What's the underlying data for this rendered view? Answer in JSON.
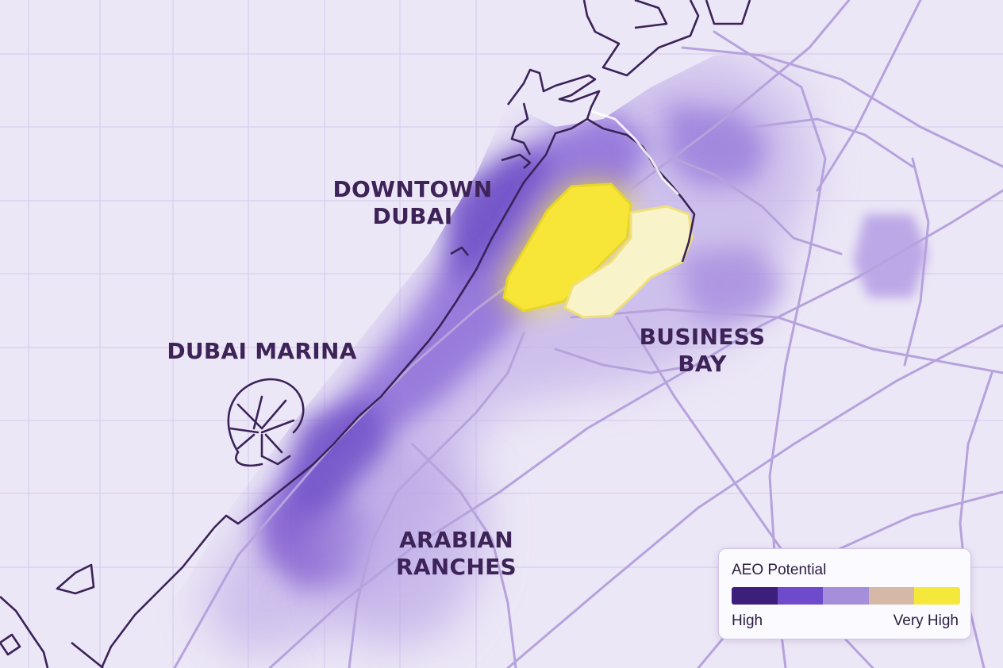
{
  "map": {
    "districts": {
      "downtown": [
        "DOWNTOWN",
        "DUBAI"
      ],
      "marina": [
        "DUBAI MARINA"
      ],
      "business_bay": [
        "BUSINESS",
        "BAY"
      ],
      "arabian_ranches": [
        "ARABIAN",
        "RANCHES"
      ]
    }
  },
  "legend": {
    "title": "AEO Potential",
    "low_label": "High",
    "high_label": "Very High",
    "scale_colors": [
      "#3c1f7a",
      "#6d4bcb",
      "#a68fda",
      "#d5b9a6",
      "#f6e83a"
    ]
  },
  "colors": {
    "background": "#ece7f6",
    "grid": "#d9cdef",
    "roads": "#b6a2dc",
    "coastline": "#3b2258",
    "label": "#3d2357",
    "hotspot": "#f7e637"
  }
}
